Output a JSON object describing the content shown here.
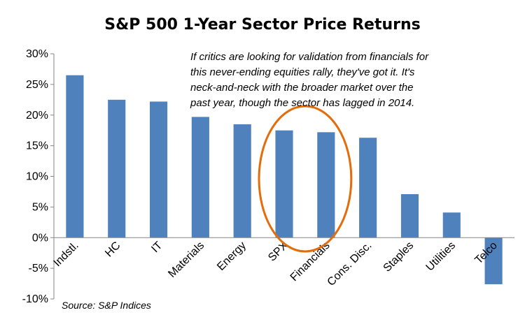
{
  "chart_data": {
    "type": "bar",
    "title": "S&P 500 1-Year Sector Price Returns",
    "categories": [
      "Indstl.",
      "HC",
      "IT",
      "Materials",
      "Energy",
      "SPX",
      "Financials",
      "Cons. Disc.",
      "Staples",
      "Utilities",
      "Telco"
    ],
    "values": [
      26.5,
      22.5,
      22.2,
      19.7,
      18.5,
      17.5,
      17.2,
      16.3,
      7.1,
      4.1,
      -7.6
    ],
    "ylim": [
      -10,
      30
    ],
    "yticks": [
      30,
      25,
      20,
      15,
      10,
      5,
      0,
      -5,
      -10
    ],
    "ytick_labels": [
      "30%",
      "25%",
      "20%",
      "15%",
      "10%",
      "5%",
      "0%",
      "-5%",
      "-10%"
    ],
    "xlabel": "",
    "ylabel": "",
    "bar_color": "#4f81bd",
    "highlight_color": "#e46c0a",
    "highlighted_categories": [
      "SPX",
      "Financials"
    ],
    "annotation_lines": [
      "If critics are looking for validation from financials for",
      "this never-ending equities rally, they've got it.  It's",
      "neck-and-neck  with the broader market over the",
      "past year, though the sector has lagged in 2014."
    ],
    "source": "Source: S&P Indices"
  }
}
